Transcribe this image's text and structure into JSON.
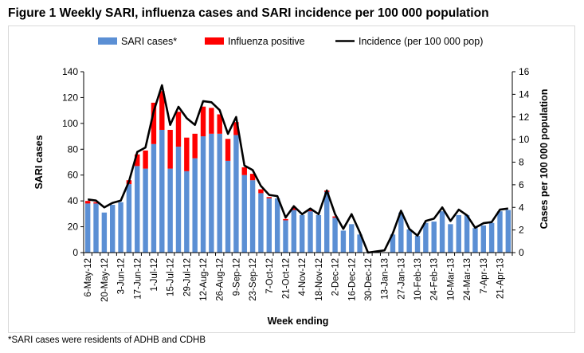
{
  "title": "Figure 1 Weekly SARI, influenza cases and SARI incidence per 100 000 population",
  "footnote": "*SARI cases were residents of ADHB and CDHB",
  "colors": {
    "sari": "#5b8fd4",
    "flu": "#ff0000",
    "line": "#000000",
    "axis": "#000000"
  },
  "chart_data": {
    "type": "bar",
    "xlabel": "Week ending",
    "ylabel": "SARI cases",
    "y2label": "Cases per 100 000 population",
    "ylim": [
      0,
      140
    ],
    "yticks": [
      0,
      20,
      40,
      60,
      80,
      100,
      120,
      140
    ],
    "y2lim": [
      0,
      16
    ],
    "y2ticks": [
      0,
      2,
      4,
      6,
      8,
      10,
      12,
      14,
      16
    ],
    "legend_position": "top",
    "legend": [
      "SARI cases*",
      "Influenza positive",
      "Incidence (per 100 000 pop)"
    ],
    "x_tick_labels": [
      "6-May-12",
      "20-May-12",
      "3-Jun-12",
      "17-Jun-12",
      "1-Jul-12",
      "15-Jul-12",
      "29-Jul-12",
      "12-Aug-12",
      "26-Aug-12",
      "9-Sep-12",
      "23-Sep-12",
      "7-Oct-12",
      "21-Oct-12",
      "4-Nov-12",
      "18-Nov-12",
      "2-Dec-12",
      "16-Dec-12",
      "30-Dec-12",
      "13-Jan-13",
      "27-Jan-13",
      "10-Feb-13",
      "24-Feb-13",
      "10-Mar-13",
      "24-Mar-13",
      "7-Apr-13",
      "21-Apr-13"
    ],
    "weeks_per_tick": 2,
    "series": [
      {
        "name": "SARI cases*",
        "kind": "bar",
        "values": [
          38,
          38,
          31,
          37,
          39,
          53,
          67,
          65,
          84,
          95,
          65,
          82,
          63,
          73,
          90,
          92,
          92,
          71,
          91,
          60,
          56,
          46,
          42,
          42,
          25,
          33,
          29,
          32,
          29,
          47,
          27,
          17,
          22,
          14,
          0,
          0,
          0,
          14,
          31,
          18,
          13,
          23,
          24,
          32,
          22,
          29,
          29,
          19,
          21,
          23,
          32,
          33
        ]
      },
      {
        "name": "Influenza positive",
        "kind": "stacked-bar",
        "values": [
          2,
          1,
          0,
          0,
          0,
          3,
          9,
          14,
          32,
          30,
          30,
          27,
          26,
          19,
          23,
          20,
          15,
          17,
          10,
          6,
          5,
          3,
          1,
          0,
          1,
          2,
          0,
          1,
          0,
          1,
          1,
          0,
          0,
          0,
          0,
          0,
          0,
          0,
          0,
          0,
          0,
          0,
          0,
          0,
          0,
          0,
          0,
          0,
          0,
          0,
          0,
          0
        ]
      },
      {
        "name": "Incidence (per 100 000 pop)",
        "kind": "line",
        "axis": "right",
        "values": [
          4.7,
          4.6,
          4.0,
          4.4,
          4.6,
          6.3,
          8.9,
          9.3,
          12.5,
          14.8,
          11.3,
          12.9,
          11.9,
          11.3,
          13.4,
          13.3,
          12.6,
          10.5,
          12.0,
          7.7,
          7.3,
          5.9,
          5.1,
          5.0,
          3.1,
          4.1,
          3.4,
          3.9,
          3.4,
          5.5,
          3.4,
          2.1,
          3.4,
          1.8,
          0.0,
          0.1,
          0.2,
          1.7,
          3.7,
          2.1,
          1.5,
          2.8,
          3.0,
          4.0,
          2.8,
          3.8,
          3.3,
          2.2,
          2.6,
          2.7,
          3.8,
          3.9
        ]
      }
    ]
  }
}
